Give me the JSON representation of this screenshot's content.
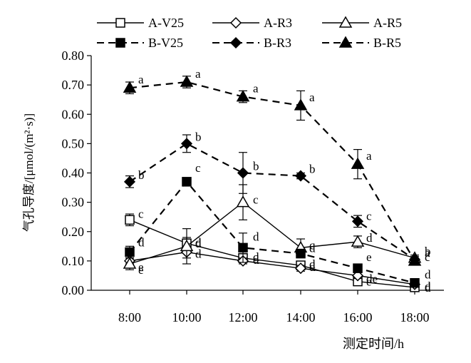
{
  "chart_data": {
    "type": "line",
    "title": "",
    "xlabel": "测定时间/h",
    "ylabel": "气孔导度/[μmol/(m²·s)]",
    "ylim": [
      0,
      0.8
    ],
    "yticks": [
      "0.00",
      "0.10",
      "0.20",
      "0.30",
      "0.40",
      "0.50",
      "0.60",
      "0.70",
      "0.80"
    ],
    "categories": [
      "8:00",
      "10:00",
      "12:00",
      "14:00",
      "16:00",
      "18:00"
    ],
    "grid": false,
    "legend_position": "top",
    "series": [
      {
        "name": "A-V25",
        "line": "solid",
        "marker": "square-open",
        "values": [
          0.24,
          0.16,
          0.11,
          0.085,
          0.03,
          0.01
        ],
        "errors": [
          0.02,
          0.02,
          0.01,
          0.01,
          0.01,
          0.005
        ],
        "labels": [
          "c",
          "d",
          "d",
          "d",
          "e",
          "d"
        ]
      },
      {
        "name": "A-R3",
        "line": "solid",
        "marker": "diamond-open",
        "values": [
          0.1,
          0.13,
          0.1,
          0.075,
          0.05,
          0.02
        ],
        "errors": [
          0.01,
          0.02,
          0.01,
          0.01,
          0.01,
          0.005
        ],
        "labels": [
          "e",
          "d",
          "d",
          "d",
          "de",
          "d"
        ]
      },
      {
        "name": "A-R5",
        "line": "solid",
        "marker": "triangle-open",
        "values": [
          0.09,
          0.15,
          0.3,
          0.145,
          0.165,
          0.11
        ],
        "errors": [
          0.02,
          0.06,
          0.06,
          0.03,
          0.02,
          0.01
        ],
        "labels": [
          "e",
          "d",
          "c",
          "c",
          "d",
          "c"
        ]
      },
      {
        "name": "B-V25",
        "line": "dashed",
        "marker": "square-filled",
        "values": [
          0.13,
          0.37,
          0.145,
          0.125,
          0.075,
          0.025
        ],
        "errors": [
          0.02,
          0.01,
          0.05,
          0.01,
          0.01,
          0.005
        ],
        "labels": [
          "d",
          "c",
          "d",
          "d",
          "e",
          "d"
        ]
      },
      {
        "name": "B-R3",
        "line": "dashed",
        "marker": "diamond-filled",
        "values": [
          0.37,
          0.5,
          0.4,
          0.39,
          0.235,
          0.105
        ],
        "errors": [
          0.02,
          0.03,
          0.07,
          0.01,
          0.02,
          0.01
        ],
        "labels": [
          "b",
          "b",
          "b",
          "b",
          "c",
          "b"
        ]
      },
      {
        "name": "B-R5",
        "line": "dashed",
        "marker": "triangle-filled",
        "values": [
          0.69,
          0.71,
          0.66,
          0.63,
          0.43,
          0.1
        ],
        "errors": [
          0.02,
          0.02,
          0.02,
          0.05,
          0.05,
          0.01
        ],
        "labels": [
          "a",
          "a",
          "a",
          "a",
          "a",
          "a"
        ]
      }
    ]
  }
}
